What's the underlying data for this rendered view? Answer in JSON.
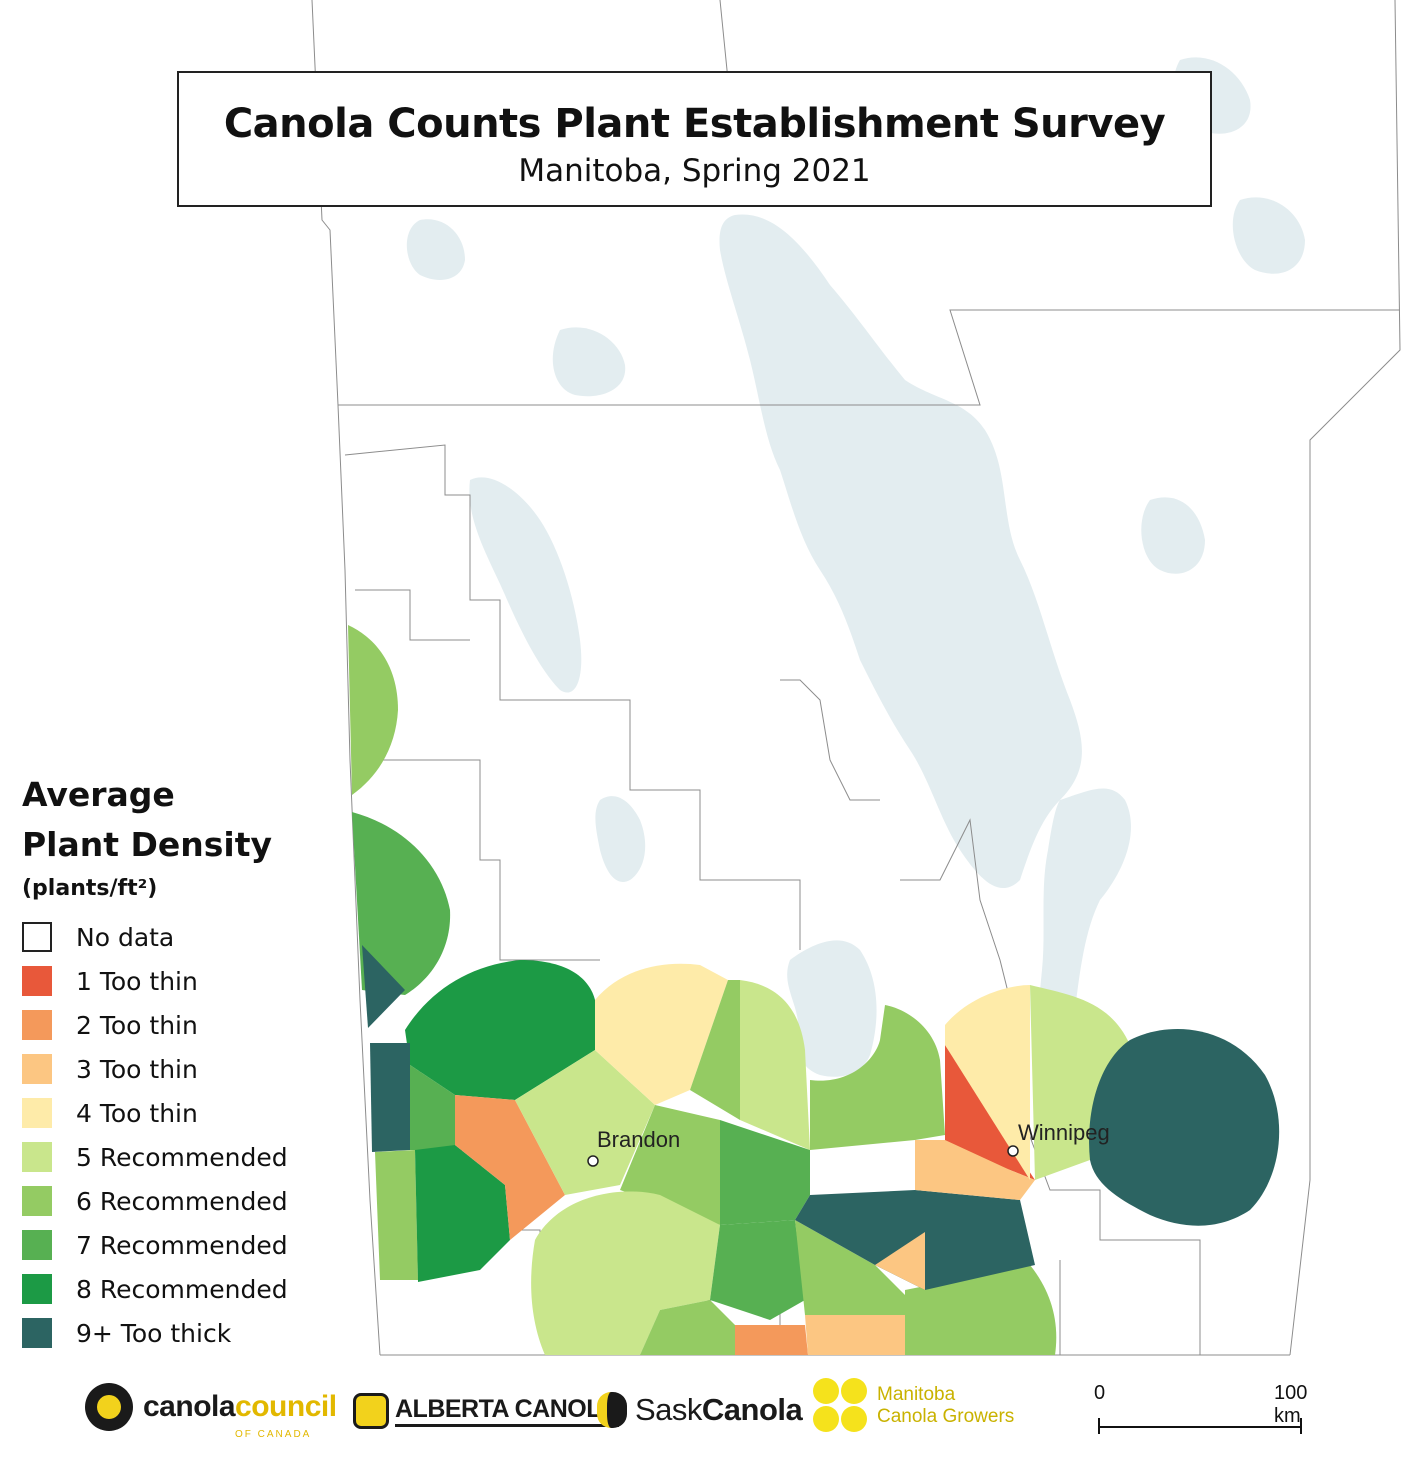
{
  "title": {
    "main": "Canola Counts Plant Establishment Survey",
    "subtitle": "Manitoba, Spring 2021"
  },
  "legend": {
    "title_line1": "Average",
    "title_line2": "Plant Density",
    "unit": "(plants/ft²)",
    "items": [
      {
        "label": "No data",
        "color": "#ffffff"
      },
      {
        "label": "1 Too thin",
        "color": "#e8583a"
      },
      {
        "label": "2 Too thin",
        "color": "#f4995b"
      },
      {
        "label": "3 Too thin",
        "color": "#fcc682"
      },
      {
        "label": "4 Too thin",
        "color": "#feeba9"
      },
      {
        "label": "5 Recommended",
        "color": "#c9e68c"
      },
      {
        "label": "6 Recommended",
        "color": "#94cb63"
      },
      {
        "label": "7 Recommended",
        "color": "#57b052"
      },
      {
        "label": "8 Recommended",
        "color": "#1c9a45"
      },
      {
        "label": "9+ Too thick",
        "color": "#2c6462"
      }
    ]
  },
  "cities": [
    {
      "name": "Brandon"
    },
    {
      "name": "Winnipeg"
    }
  ],
  "colors": {
    "water": "#e3edf0",
    "land": "#ffffff",
    "boundary": "#8c8c8c"
  },
  "logos": {
    "canola_council": {
      "part1": "canola",
      "part2": "council",
      "sub": "OF CANADA"
    },
    "alberta_canola": "ALBERTA CANOLA",
    "sask_canola": {
      "part1": "Sask",
      "part2": "Canola"
    },
    "manitoba_canola": {
      "line1": "Manitoba",
      "line2": "Canola Growers"
    }
  },
  "scale_bar": {
    "start_label": "0",
    "end_label": "100 km"
  }
}
